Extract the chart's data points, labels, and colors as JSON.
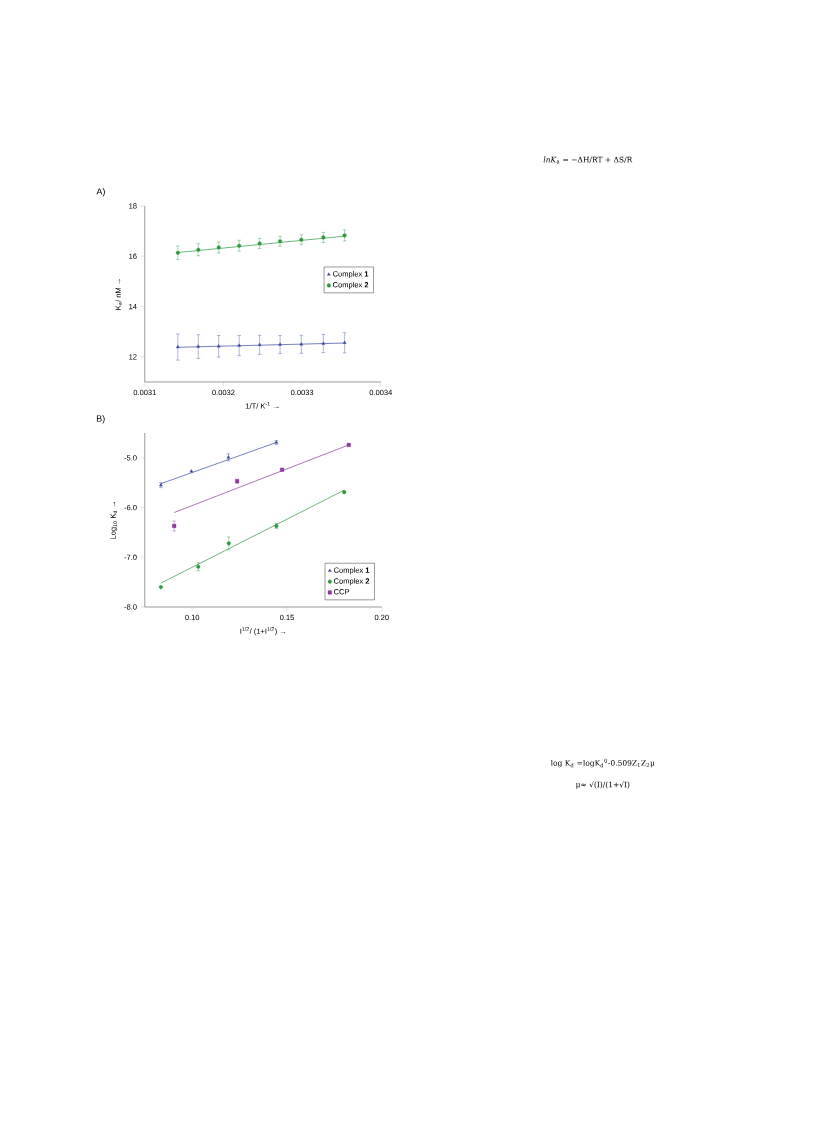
{
  "chart_data": [
    {
      "type": "scatter",
      "title": "A)",
      "xlabel": "1/T/ K$^{-1}$ →",
      "ylabel": "K$_{a}$/ nM →",
      "xlim": [
        0.0031,
        0.0034
      ],
      "xticks": [
        0.0031,
        0.0032,
        0.0033,
        0.0034
      ],
      "ylim": [
        11,
        18
      ],
      "yticks": [
        12,
        14,
        16,
        18
      ],
      "legend": "right",
      "series": [
        {
          "name": "Complex **1**",
          "color": "#3a4aa0",
          "marker": "triangle",
          "x": [
            0.003142,
            0.003168,
            0.003194,
            0.00322,
            0.003246,
            0.003272,
            0.003299,
            0.003327,
            0.003354
          ],
          "values": [
            12.39,
            12.41,
            12.42,
            12.45,
            12.48,
            12.49,
            12.5,
            12.53,
            12.56
          ],
          "errors": [
            0.52,
            0.47,
            0.43,
            0.4,
            0.38,
            0.36,
            0.36,
            0.36,
            0.4
          ]
        },
        {
          "name": "Complex **2**",
          "color": "#2e9a3e",
          "marker": "circle",
          "x": [
            0.003142,
            0.003168,
            0.003194,
            0.00322,
            0.003246,
            0.003272,
            0.003299,
            0.003327,
            0.003354
          ],
          "values": [
            16.14,
            16.26,
            16.35,
            16.42,
            16.51,
            16.6,
            16.66,
            16.75,
            16.83
          ],
          "errors": [
            0.27,
            0.24,
            0.22,
            0.22,
            0.2,
            0.2,
            0.2,
            0.2,
            0.22
          ]
        },
        {
          "type": "line",
          "color": "#3a4aa0",
          "x": [
            0.003142,
            0.003354
          ],
          "values": [
            12.38,
            12.55
          ]
        },
        {
          "type": "line",
          "color": "#2e9a3e",
          "x": [
            0.003142,
            0.003354
          ],
          "values": [
            16.15,
            16.8
          ]
        }
      ]
    },
    {
      "type": "scatter",
      "title": "B)",
      "xlabel": "I$^{1/2}$/ (1+I$^{1/2}$) →",
      "ylabel": "Log$_{10}$ K$_{d}$ →",
      "xlim": [
        0.075,
        0.2
      ],
      "xticks": [
        {
          "value": 0.1,
          "label": "0.10"
        },
        {
          "value": 0.15,
          "label": "0.15"
        },
        {
          "value": 0.2,
          "label": "0.20"
        }
      ],
      "ylim": [
        -8,
        -4.5
      ],
      "yticks": [
        {
          "value": -8,
          "label": "-8.0"
        },
        {
          "value": -7,
          "label": "-7.0"
        },
        {
          "value": -6,
          "label": "-6.0"
        },
        {
          "value": -5,
          "label": "-5.0"
        }
      ],
      "legend": "bottom right",
      "series": [
        {
          "name": "Complex **1**",
          "color": "#3a4aa0",
          "marker": "triangle",
          "x": [
            0.0835,
            0.0996,
            0.1191,
            0.1444
          ],
          "values": [
            -5.55,
            -5.27,
            -4.99,
            -4.69
          ],
          "errors": [
            0.05,
            null,
            0.07,
            0.04
          ]
        },
        {
          "name": "Complex **2**",
          "color": "#2e9a3e",
          "marker": "circle",
          "x": [
            0.0835,
            0.1032,
            0.1193,
            0.1444,
            0.1802
          ],
          "values": [
            -7.6,
            -7.19,
            -6.72,
            -6.37,
            -5.69
          ],
          "errors": [
            null,
            0.08,
            0.13,
            0.05,
            null
          ]
        },
        {
          "name": "CCP",
          "color": "#8a3a9a",
          "marker": "square",
          "x": [
            0.0905,
            0.1237,
            0.1474,
            0.1826
          ],
          "values": [
            -6.37,
            -5.47,
            -5.24,
            -4.74
          ],
          "errors": [
            0.1,
            0.04,
            null,
            null
          ]
        },
        {
          "type": "line",
          "color": "#3a4aa0",
          "x": [
            0.0835,
            0.1444
          ],
          "values": [
            -5.52,
            -4.69
          ]
        },
        {
          "type": "line",
          "color": "#2e9a3e",
          "x": [
            0.0835,
            0.1802
          ],
          "values": [
            -7.52,
            -5.65
          ]
        },
        {
          "type": "line",
          "color": "#8a3a9a",
          "x": [
            0.0905,
            0.1826
          ],
          "values": [
            -6.1,
            -4.74
          ]
        }
      ]
    },
    {
      "type": "other",
      "annotations": [
        "*lnK*$_{a}$ = −ΔH/RT + ΔS/R",
        "log K$_{d}$ =logK$_{d}$$^{0}$-0.509Z$_{1}$Z$_{2}$μ",
        "μ≈ √(I)/(1+√I)"
      ]
    }
  ]
}
